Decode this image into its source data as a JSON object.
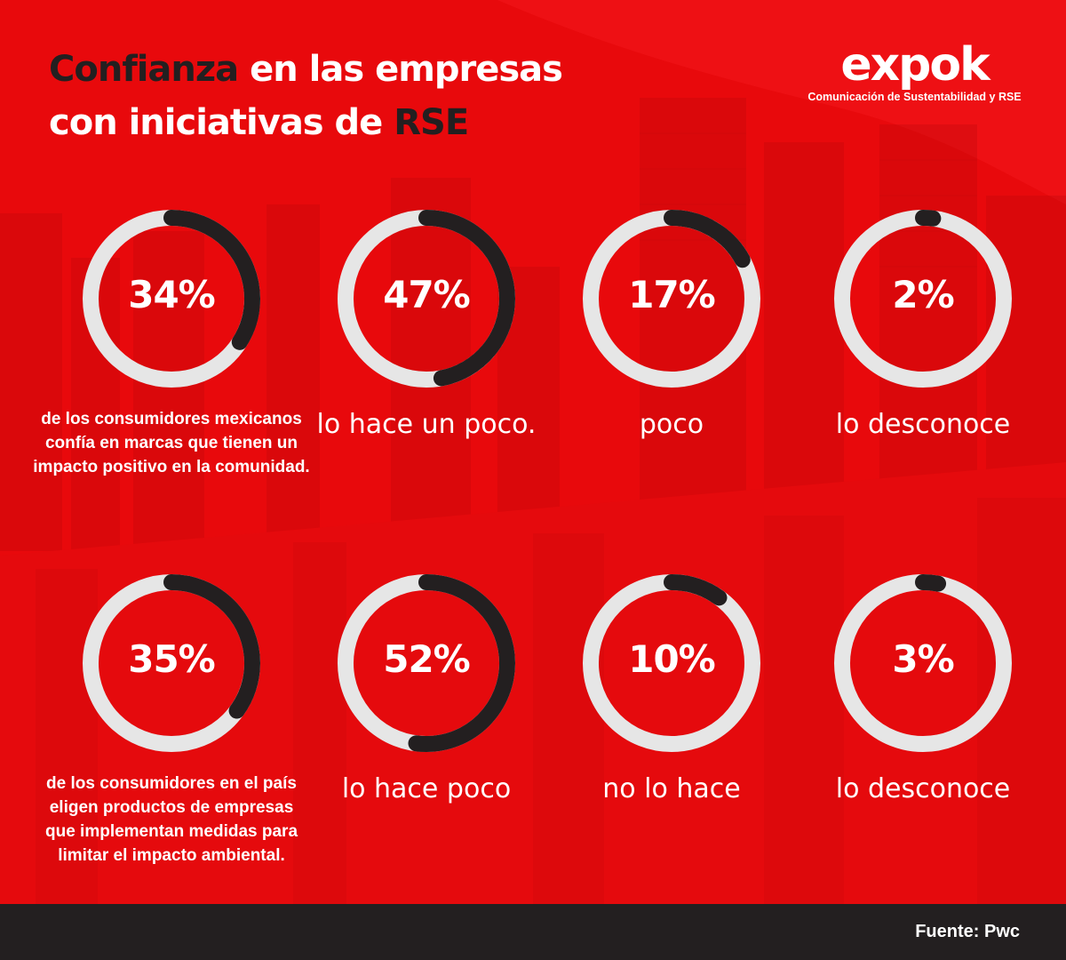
{
  "colors": {
    "background": "#e8090c",
    "ring_track": "#e6e6e6",
    "ring_fill": "#231f20",
    "footer": "#231f20",
    "text": "#ffffff",
    "title_dark": "#231f20"
  },
  "title": {
    "line1_dark": "Confianza",
    "line1_rest": " en las empresas",
    "line2_start": "con iniciativas de ",
    "line2_dark": "RSE"
  },
  "logo": {
    "word": "expok",
    "tagline": "Comunicación de Sustentabilidad y RSE"
  },
  "row1": [
    {
      "value": 34,
      "label": "34%",
      "desc": "de los consumidores mexicanos confía en marcas que tienen un impacto positivo en la comunidad."
    },
    {
      "value": 47,
      "label": "47%",
      "desc": "lo hace un poco."
    },
    {
      "value": 17,
      "label": "17%",
      "desc": "poco"
    },
    {
      "value": 2,
      "label": "2%",
      "desc": "lo desconoce"
    }
  ],
  "row2": [
    {
      "value": 35,
      "label": "35%",
      "desc": "de los consumidores en el país eligen productos de empresas que implementan medidas para limitar el impacto ambiental."
    },
    {
      "value": 52,
      "label": "52%",
      "desc": "lo hace poco"
    },
    {
      "value": 10,
      "label": "10%",
      "desc": "no lo hace"
    },
    {
      "value": 3,
      "label": "3%",
      "desc": "lo desconoce"
    }
  ],
  "footer": {
    "source": "Fuente: Pwc"
  }
}
